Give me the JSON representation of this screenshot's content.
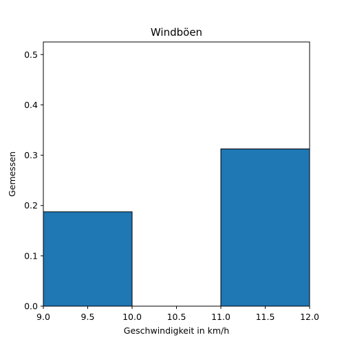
{
  "chart_data": {
    "type": "bar",
    "title": "Windböen",
    "xlabel": "Geschwindigkeit in km/h",
    "ylabel": "Gemessen",
    "xlim": [
      9.0,
      12.0
    ],
    "ylim": [
      0.0,
      0.525
    ],
    "xticks": [
      "9.0",
      "9.5",
      "10.0",
      "10.5",
      "11.0",
      "11.5",
      "12.0"
    ],
    "yticks": [
      "0.0",
      "0.1",
      "0.2",
      "0.3",
      "0.4",
      "0.5"
    ],
    "bins": [
      {
        "x0": 9.0,
        "x1": 10.0,
        "value": 0.1875
      },
      {
        "x0": 10.0,
        "x1": 11.0,
        "value": 0.0
      },
      {
        "x0": 11.0,
        "x1": 12.0,
        "value": 0.3125
      }
    ],
    "bar_color": "#1f77b4",
    "edge_color": "#000000",
    "grid": false,
    "legend": "none"
  }
}
